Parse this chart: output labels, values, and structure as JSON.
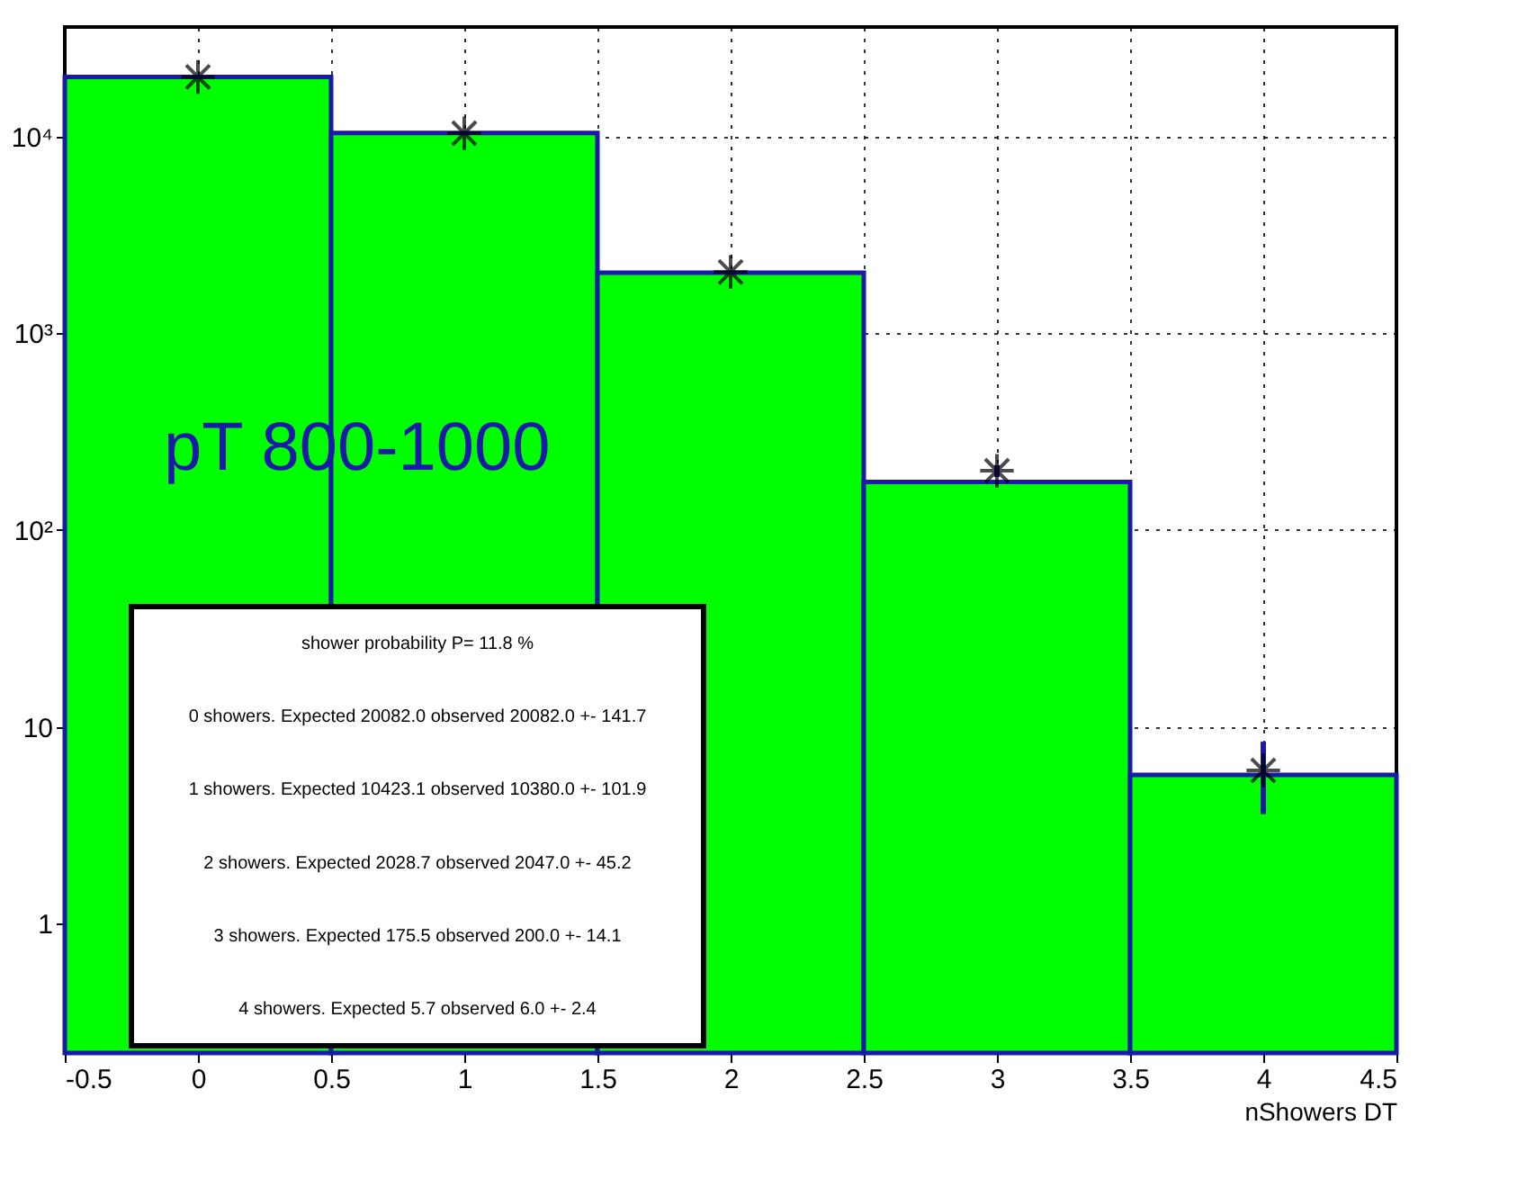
{
  "chart_data": {
    "type": "histogram",
    "xlabel": "nShowers DT",
    "annotations": [
      "pT 800-1000",
      "shower probability P= 11.8 %",
      "0 showers. Expected 20082.0 observed 20082.0 +- 141.7",
      "1 showers. Expected 10423.1 observed 10380.0 +- 101.9",
      "2 showers. Expected 2028.7 observed 2047.0 +- 45.2",
      "3 showers. Expected 175.5 observed 200.0 +- 14.1",
      "4 showers. Expected 5.7 observed 6.0 +- 2.4"
    ],
    "series": [
      {
        "color": "#00ff00",
        "bins": [
          -0.5,
          0.5,
          1.5,
          2.5,
          3.5,
          4.5
        ],
        "values": [
          20082.0,
          10423.1,
          2028.7,
          175.5,
          5.7
        ]
      },
      {
        "type": "scatter",
        "color": "#000000",
        "marker": "cross",
        "x": [
          0,
          1,
          2,
          3,
          4
        ],
        "values": [
          20082.0,
          10380.0,
          2047.0,
          200.0,
          6.0
        ],
        "errors": [
          141.7,
          101.9,
          45.2,
          14.1,
          2.4
        ]
      }
    ],
    "log": "y",
    "xlim": [
      -0.5,
      4.5
    ],
    "xticks": [
      -0.5,
      0,
      0.5,
      1,
      1.5,
      2,
      2.5,
      3,
      3.5,
      4,
      4.5
    ],
    "ylim": [
      0.22,
      36000
    ],
    "yticks": [
      1,
      10,
      {
        "value": 100,
        "label": "10²"
      },
      {
        "value": 1000,
        "label": "10³"
      },
      {
        "value": 10000,
        "label": "10⁴"
      }
    ],
    "grid": true,
    "line_style": "dotted"
  }
}
